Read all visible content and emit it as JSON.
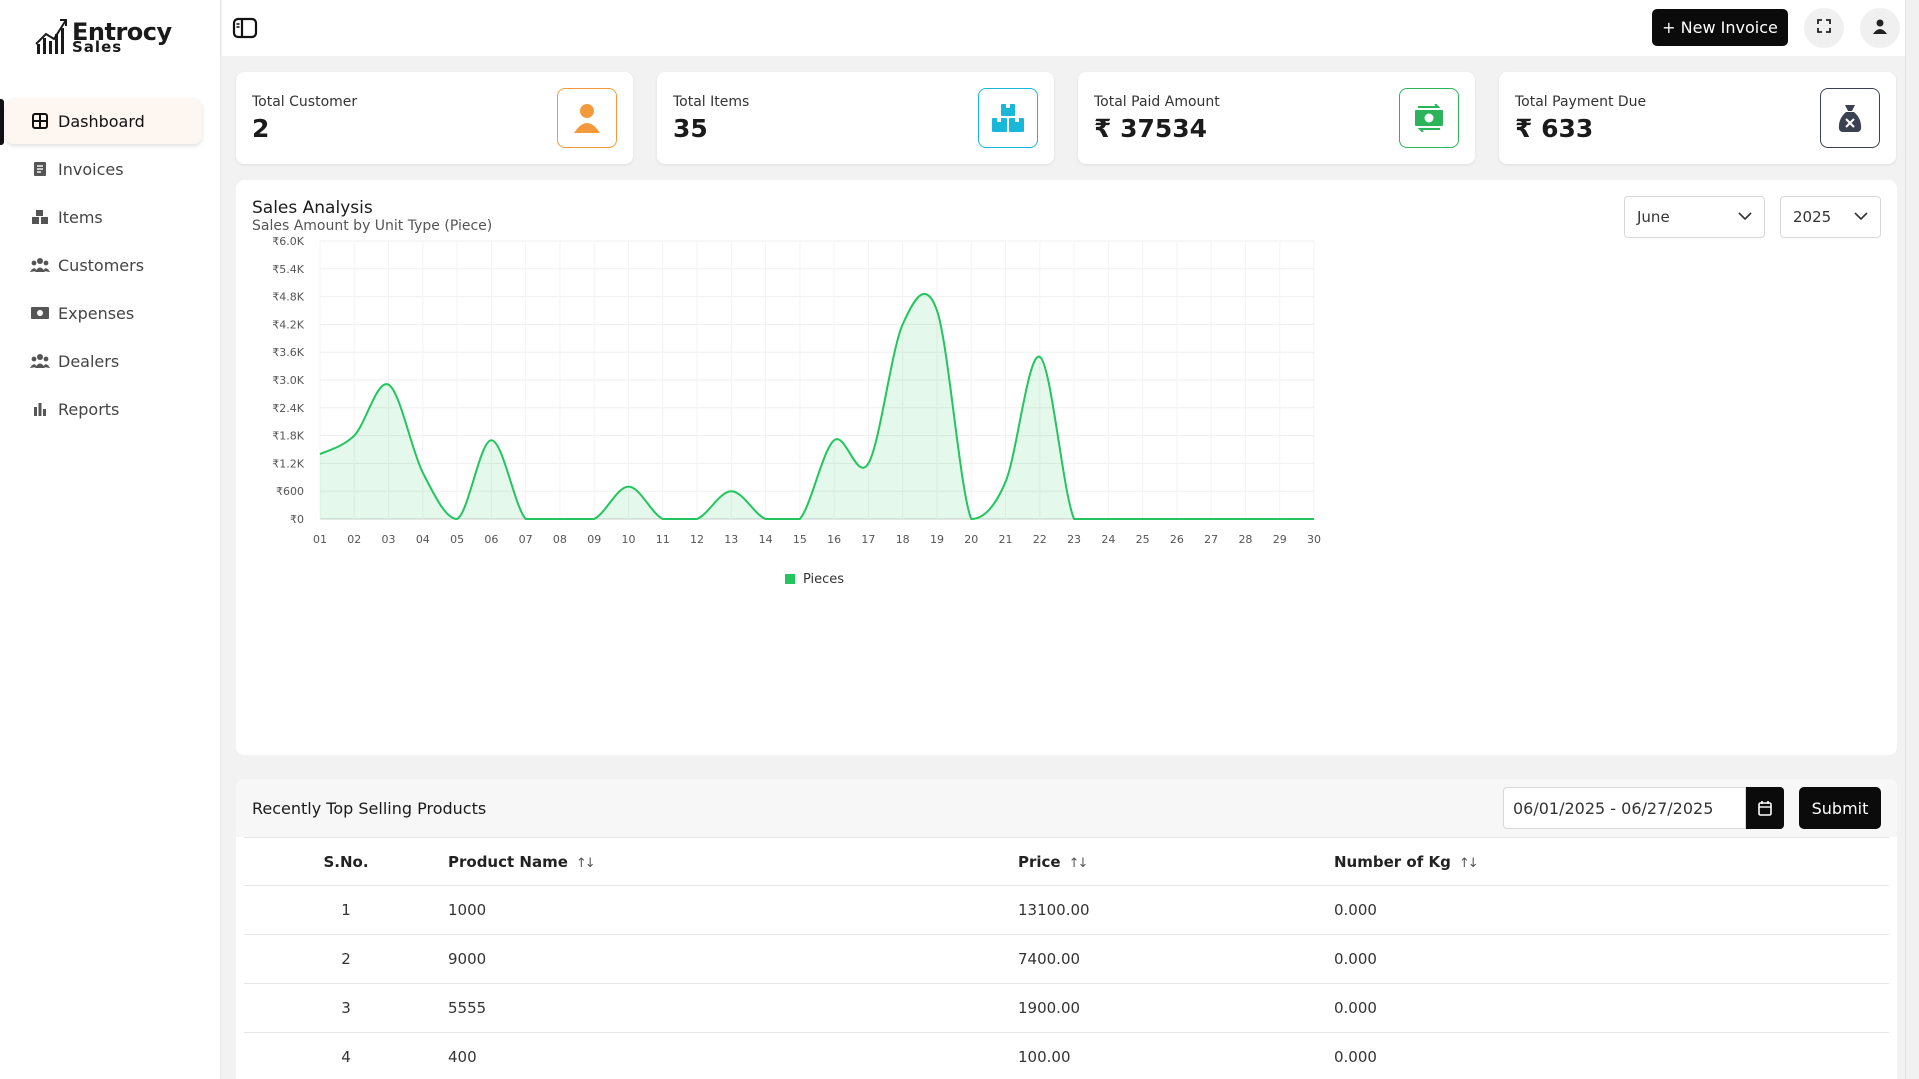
{
  "brand": {
    "name": "Entrocy",
    "sub": "Sales"
  },
  "sidebar": {
    "items": [
      {
        "label": "Dashboard",
        "icon": "dashboard-icon",
        "active": true
      },
      {
        "label": "Invoices",
        "icon": "invoice-icon"
      },
      {
        "label": "Items",
        "icon": "boxes-icon"
      },
      {
        "label": "Customers",
        "icon": "users-icon"
      },
      {
        "label": "Expenses",
        "icon": "money-icon"
      },
      {
        "label": "Dealers",
        "icon": "users-icon"
      },
      {
        "label": "Reports",
        "icon": "bar-chart-icon"
      }
    ]
  },
  "header": {
    "new_invoice_label": "+ New Invoice"
  },
  "stats": [
    {
      "label": "Total Customer",
      "value": "2",
      "icon": "user-icon",
      "color": "#f39a3c"
    },
    {
      "label": "Total Items",
      "value": "35",
      "icon": "boxes-icon",
      "color": "#1ab8d8"
    },
    {
      "label": "Total Paid Amount",
      "value": "₹ 37534",
      "icon": "cash-icon",
      "color": "#2bb45a"
    },
    {
      "label": "Total Payment Due",
      "value": "₹ 633",
      "icon": "money-bag-icon",
      "color": "#3b4150"
    }
  ],
  "sales": {
    "title": "Sales Analysis",
    "subtitle": "Sales Amount by Unit Type (Piece)",
    "month": "June",
    "year": "2025"
  },
  "chart_data": {
    "type": "area",
    "title": "Sales Analysis",
    "subtitle": "Sales Amount by Unit Type (Piece)",
    "x": [
      "01",
      "02",
      "03",
      "04",
      "05",
      "06",
      "07",
      "08",
      "09",
      "10",
      "11",
      "12",
      "13",
      "14",
      "15",
      "16",
      "17",
      "18",
      "19",
      "20",
      "21",
      "22",
      "23",
      "24",
      "25",
      "26",
      "27",
      "28",
      "29",
      "30"
    ],
    "series": [
      {
        "name": "Pieces",
        "color": "#22c55e",
        "values": [
          1400,
          1800,
          2900,
          1000,
          0,
          1700,
          0,
          0,
          0,
          700,
          0,
          0,
          600,
          0,
          0,
          1700,
          1200,
          4200,
          4500,
          0,
          800,
          3500,
          0,
          0,
          0,
          0,
          0,
          0,
          0,
          0
        ]
      }
    ],
    "y_ticks": [
      "₹0",
      "₹600",
      "₹1.2K",
      "₹1.8K",
      "₹2.4K",
      "₹3.0K",
      "₹3.6K",
      "₹4.2K",
      "₹4.8K",
      "₹5.4K",
      "₹6.0K"
    ],
    "ylim": [
      0,
      6000
    ],
    "legend": "bottom-center"
  },
  "products": {
    "title": "Recently Top Selling Products",
    "date_range": "06/01/2025 - 06/27/2025",
    "submit_label": "Submit",
    "columns": [
      "S.No.",
      "Product Name",
      "Price",
      "Number of Kg"
    ],
    "sort_glyph": "↑↓",
    "rows": [
      {
        "sno": "1",
        "name": "1000",
        "price": "13100.00",
        "kg": "0.000"
      },
      {
        "sno": "2",
        "name": "9000",
        "price": "7400.00",
        "kg": "0.000"
      },
      {
        "sno": "3",
        "name": "5555",
        "price": "1900.00",
        "kg": "0.000"
      },
      {
        "sno": "4",
        "name": "400",
        "price": "100.00",
        "kg": "0.000"
      }
    ]
  }
}
